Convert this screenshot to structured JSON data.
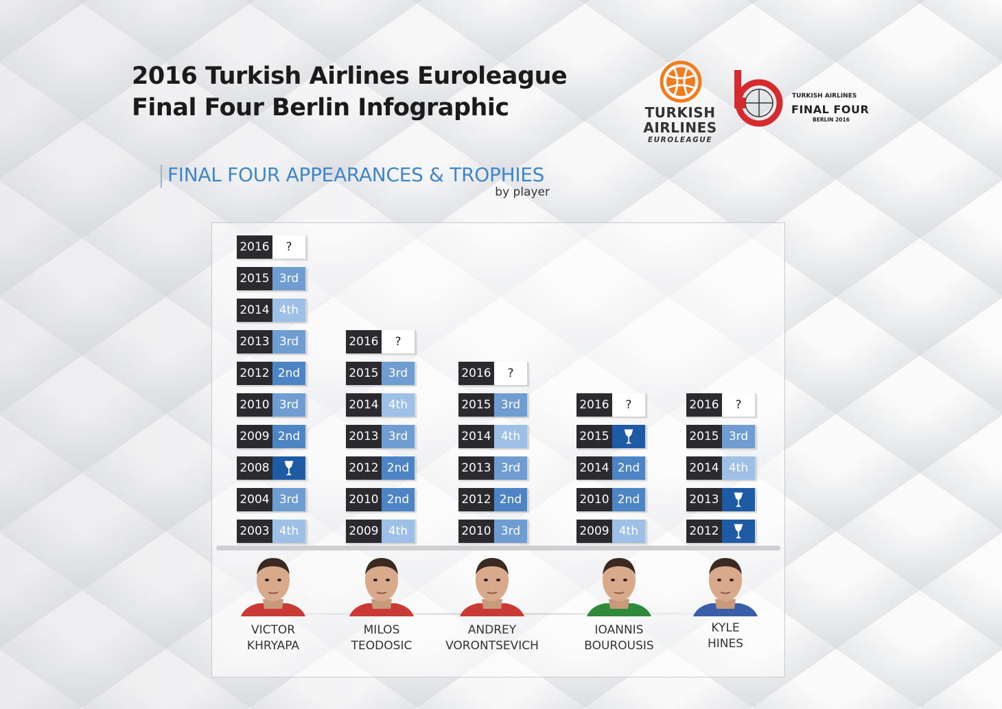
{
  "title": {
    "line1": "2016 Turkish Airlines Euroleague",
    "line2": "Final Four Berlin Infographic"
  },
  "logos": {
    "euroleague": {
      "line1": "TURKISH",
      "line2": "AIRLINES",
      "line3": "EUROLEAGUE"
    },
    "final_four": {
      "line1": "TURKISH AIRLINES",
      "line2": "FINAL FOUR",
      "line3": "BERLIN 2016"
    }
  },
  "section": {
    "title": "FINAL FOUR APPEARANCES & TROPHIES",
    "subtitle": "by player"
  },
  "colors": {
    "champion": "#1f5aa4",
    "second": "#4d84c3",
    "third": "#6f9dd1",
    "fourth": "#9fc0e6",
    "year_bg": "#2b2a2f",
    "accent": "#3f86c8",
    "logo_red": "#d52b2f",
    "logo_orange": "#f07c1e"
  },
  "players": [
    {
      "first": "VICTOR",
      "last": "KHRYAPA",
      "jersey_color": "#c83a33",
      "appearances": [
        {
          "year": "2016",
          "result": "?"
        },
        {
          "year": "2015",
          "result": "3rd"
        },
        {
          "year": "2014",
          "result": "4th"
        },
        {
          "year": "2013",
          "result": "3rd"
        },
        {
          "year": "2012",
          "result": "2nd"
        },
        {
          "year": "2010",
          "result": "3rd"
        },
        {
          "year": "2009",
          "result": "2nd"
        },
        {
          "year": "2008",
          "result": "trophy"
        },
        {
          "year": "2004",
          "result": "3rd"
        },
        {
          "year": "2003",
          "result": "4th"
        }
      ]
    },
    {
      "first": "MILOS",
      "last": "TEODOSIC",
      "jersey_color": "#c83a33",
      "appearances": [
        {
          "year": "2016",
          "result": "?"
        },
        {
          "year": "2015",
          "result": "3rd"
        },
        {
          "year": "2014",
          "result": "4th"
        },
        {
          "year": "2013",
          "result": "3rd"
        },
        {
          "year": "2012",
          "result": "2nd"
        },
        {
          "year": "2010",
          "result": "2nd"
        },
        {
          "year": "2009",
          "result": "4th"
        }
      ]
    },
    {
      "first": "ANDREY",
      "last": "VORONTSEVICH",
      "jersey_color": "#c83a33",
      "appearances": [
        {
          "year": "2016",
          "result": "?"
        },
        {
          "year": "2015",
          "result": "3rd"
        },
        {
          "year": "2014",
          "result": "4th"
        },
        {
          "year": "2013",
          "result": "3rd"
        },
        {
          "year": "2012",
          "result": "2nd"
        },
        {
          "year": "2010",
          "result": "3rd"
        }
      ]
    },
    {
      "first": "IOANNIS",
      "last": "BOUROUSIS",
      "jersey_color": "#2f8a3c",
      "appearances": [
        {
          "year": "2016",
          "result": "?"
        },
        {
          "year": "2015",
          "result": "trophy"
        },
        {
          "year": "2014",
          "result": "2nd"
        },
        {
          "year": "2010",
          "result": "2nd"
        },
        {
          "year": "2009",
          "result": "4th"
        }
      ]
    },
    {
      "first": "KYLE",
      "last": "HINES",
      "jersey_color": "#3a5fa8",
      "appearances": [
        {
          "year": "2016",
          "result": "?"
        },
        {
          "year": "2015",
          "result": "3rd"
        },
        {
          "year": "2014",
          "result": "4th"
        },
        {
          "year": "2013",
          "result": "trophy"
        },
        {
          "year": "2012",
          "result": "trophy"
        }
      ]
    }
  ]
}
